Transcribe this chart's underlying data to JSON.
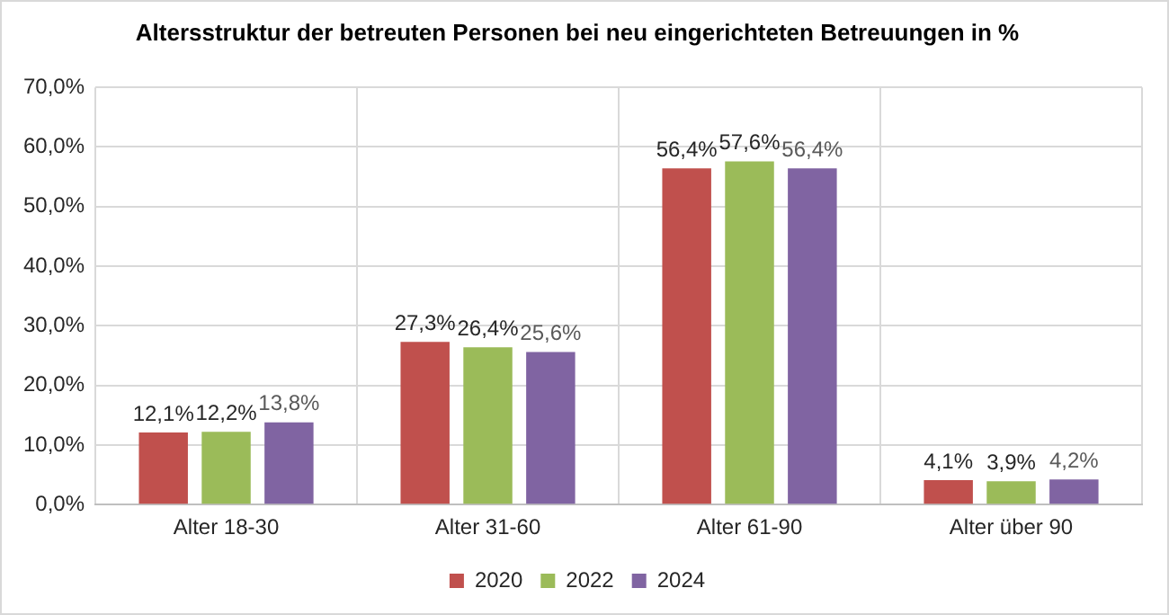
{
  "chart_data": {
    "type": "bar",
    "title": "Altersstruktur der betreuten Personen bei neu eingerichteten Betreuungen in %",
    "categories": [
      "Alter 18-30",
      "Alter 31-60",
      "Alter 61-90",
      "Alter über 90"
    ],
    "series": [
      {
        "name": "2020",
        "color": "#c0504d",
        "values": [
          12.1,
          27.3,
          56.4,
          4.1
        ],
        "value_labels": [
          "12,1%",
          "27,3%",
          "56,4%",
          "4,1%"
        ]
      },
      {
        "name": "2022",
        "color": "#9bbb59",
        "values": [
          12.2,
          26.4,
          57.6,
          3.9
        ],
        "value_labels": [
          "12,2%",
          "26,4%",
          "57,6%",
          "3,9%"
        ]
      },
      {
        "name": "2024",
        "color": "#8064a2",
        "values": [
          13.8,
          25.6,
          56.4,
          4.2
        ],
        "value_labels": [
          "13,8%",
          "25,6%",
          "56,4%",
          "4,2%"
        ]
      }
    ],
    "ylim": [
      0,
      70
    ],
    "yticks": [
      {
        "value": 0,
        "label": "0,0%"
      },
      {
        "value": 10,
        "label": "10,0%"
      },
      {
        "value": 20,
        "label": "20,0%"
      },
      {
        "value": 30,
        "label": "30,0%"
      },
      {
        "value": 40,
        "label": "40,0%"
      },
      {
        "value": 50,
        "label": "50,0%"
      },
      {
        "value": 60,
        "label": "60,0%"
      },
      {
        "value": 70,
        "label": "70,0%"
      }
    ],
    "grid": true,
    "legend": "bottom"
  }
}
